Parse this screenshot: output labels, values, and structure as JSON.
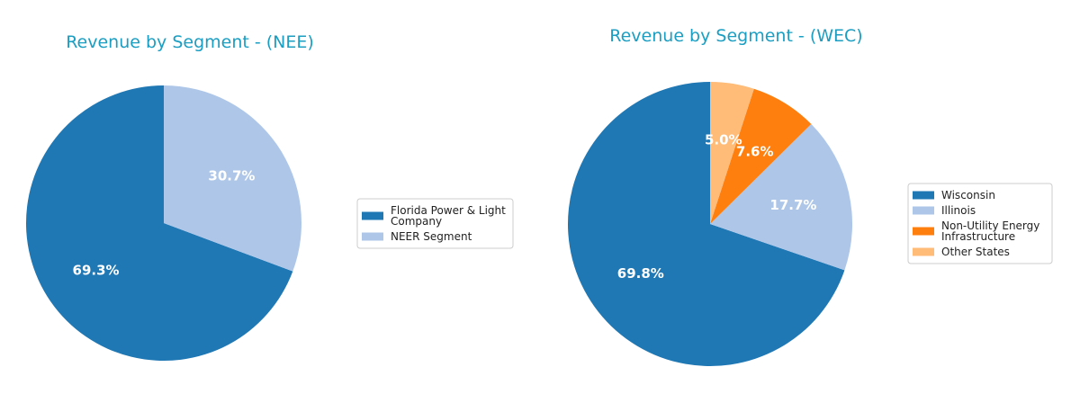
{
  "chart_data": [
    {
      "type": "pie",
      "title": "Revenue by Segment - (NEE)",
      "categories": [
        "Florida Power & Light Company",
        "NEER Segment"
      ],
      "legend_lines": [
        [
          "Florida Power & Light",
          "Company"
        ],
        [
          "NEER Segment"
        ]
      ],
      "values": [
        69.3,
        30.7
      ],
      "labels": [
        "69.3%",
        "30.7%"
      ],
      "colors": [
        "#1f77b4",
        "#aec7e8"
      ],
      "legend_position": "right"
    },
    {
      "type": "pie",
      "title": "Revenue by Segment - (WEC)",
      "categories": [
        "Wisconsin",
        "Illinois",
        "Non-Utility Energy Infrastructure",
        "Other States"
      ],
      "legend_lines": [
        [
          "Wisconsin"
        ],
        [
          "Illinois"
        ],
        [
          "Non-Utility Energy",
          "Infrastructure"
        ],
        [
          "Other States"
        ]
      ],
      "values": [
        69.8,
        17.7,
        7.6,
        5.0
      ],
      "labels": [
        "69.8%",
        "17.7%",
        "7.6%",
        "5.0%"
      ],
      "colors": [
        "#1f77b4",
        "#aec7e8",
        "#ff7f0e",
        "#ffbb78"
      ],
      "legend_position": "right"
    }
  ]
}
